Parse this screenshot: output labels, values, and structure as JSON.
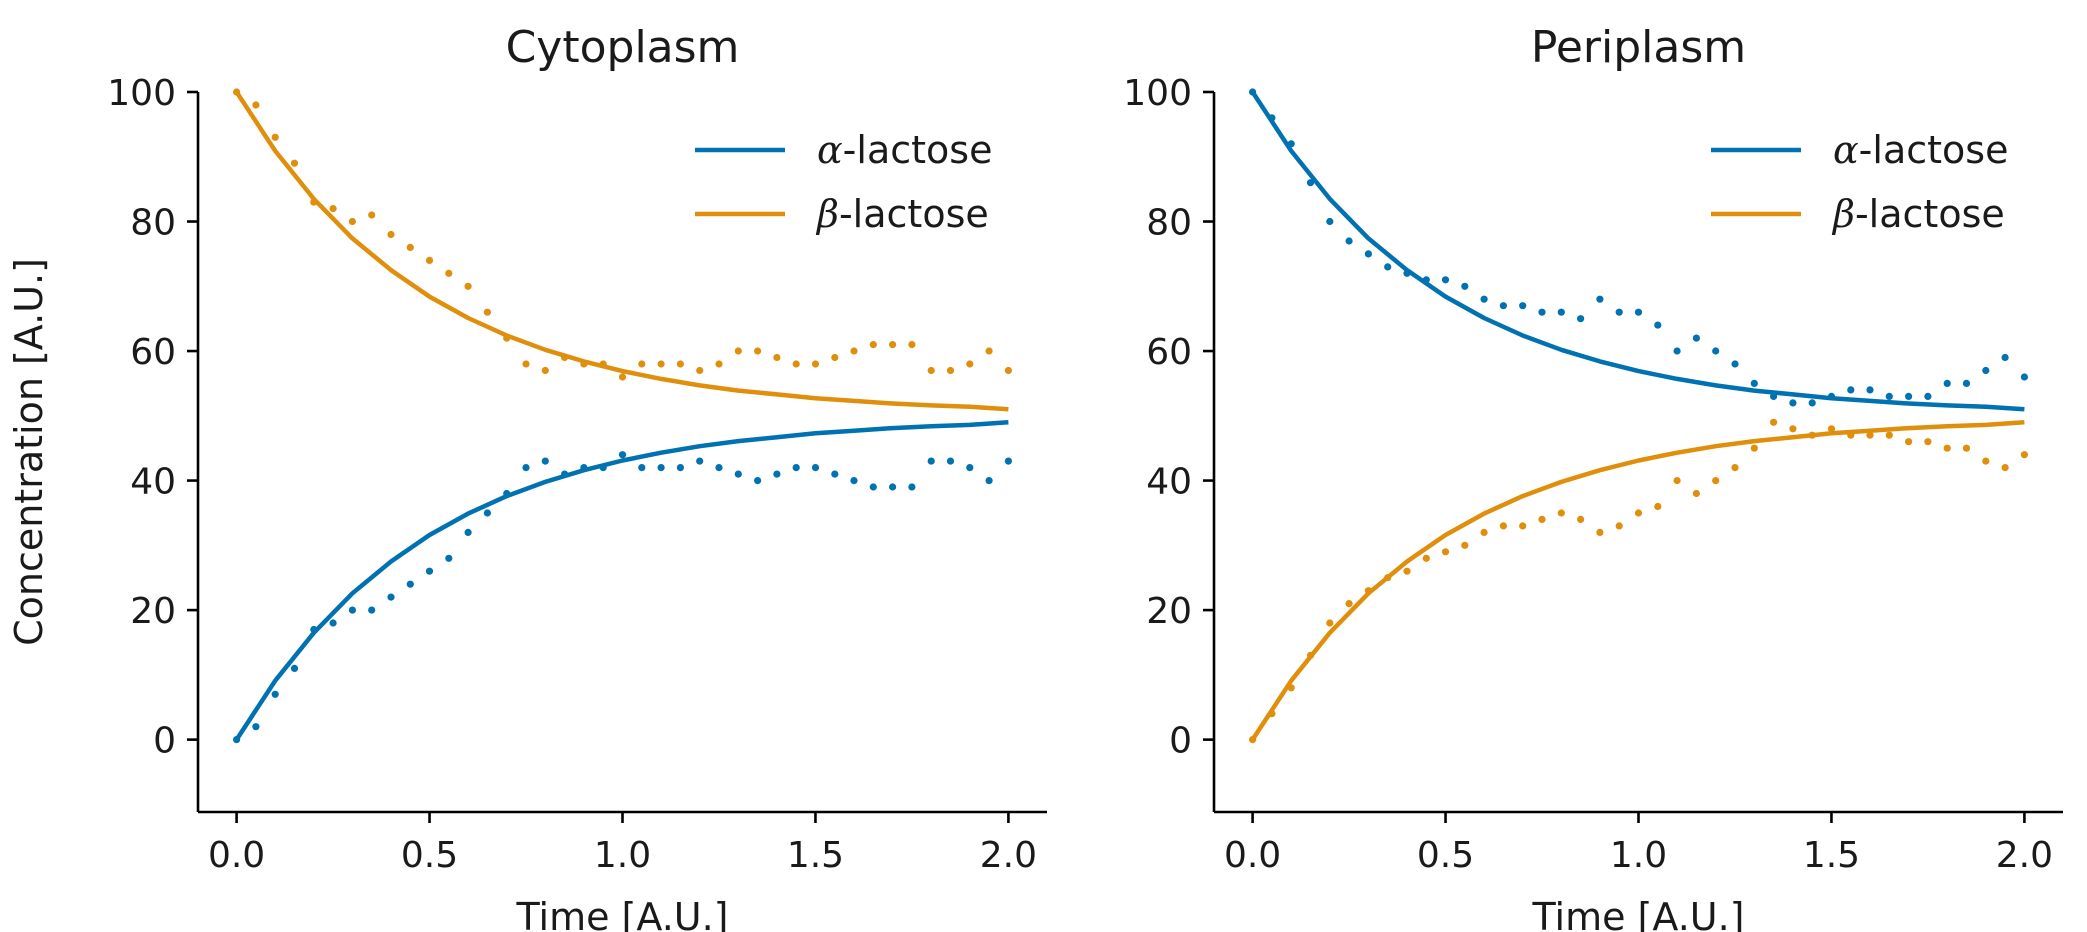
{
  "colors": {
    "alpha": "#0072b2",
    "beta": "#e08f0c"
  },
  "chart_data": [
    {
      "type": "line",
      "title": "Cytoplasm",
      "xlabel": "Time [A.U.]",
      "ylabel": "Concentration [A.U.]",
      "xlim": [
        -0.1,
        2.1
      ],
      "ylim": [
        -5,
        100
      ],
      "xticks": [
        0.0,
        0.5,
        1.0,
        1.5,
        2.0
      ],
      "xtick_labels": [
        "0.0",
        "0.5",
        "1.0",
        "1.5",
        "2.0"
      ],
      "yticks": [
        0,
        20,
        40,
        60,
        80,
        100
      ],
      "ytick_labels": [
        "0",
        "20",
        "40",
        "60",
        "80",
        "100"
      ],
      "grid": false,
      "legend_position": "top-right",
      "legend": [
        {
          "symbol": "α",
          "label": "-lactose",
          "series": "alpha"
        },
        {
          "symbol": "β",
          "label": "-lactose",
          "series": "beta"
        }
      ],
      "series": [
        {
          "name": "α-lactose",
          "color_key": "alpha",
          "fit": {
            "x": [
              0.0,
              0.1,
              0.2,
              0.3,
              0.4,
              0.5,
              0.6,
              0.7,
              0.8,
              0.9,
              1.0,
              1.1,
              1.2,
              1.3,
              1.4,
              1.5,
              1.6,
              1.7,
              1.8,
              1.9,
              2.0
            ],
            "y": [
              0,
              9.1,
              16.5,
              22.6,
              27.5,
              31.6,
              34.9,
              37.6,
              39.8,
              41.6,
              43.1,
              44.3,
              45.3,
              46.1,
              46.7,
              47.3,
              47.7,
              48.1,
              48.4,
              48.6,
              49.0
            ]
          },
          "points": {
            "x": [
              0.0,
              0.05,
              0.1,
              0.15,
              0.2,
              0.25,
              0.3,
              0.35,
              0.4,
              0.45,
              0.5,
              0.55,
              0.6,
              0.65,
              0.7,
              0.75,
              0.8,
              0.85,
              0.9,
              0.95,
              1.0,
              1.05,
              1.1,
              1.15,
              1.2,
              1.25,
              1.3,
              1.35,
              1.4,
              1.45,
              1.5,
              1.55,
              1.6,
              1.65,
              1.7,
              1.75,
              1.8,
              1.85,
              1.9,
              1.95,
              2.0
            ],
            "y": [
              0,
              2,
              7,
              11,
              17,
              18,
              20,
              20,
              22,
              24,
              26,
              28,
              32,
              35,
              38,
              42,
              43,
              41,
              42,
              42,
              44,
              42,
              42,
              42,
              43,
              42,
              41,
              40,
              41,
              42,
              42,
              41,
              40,
              39,
              39,
              39,
              43,
              43,
              42,
              40,
              43
            ]
          }
        },
        {
          "name": "β-lactose",
          "color_key": "beta",
          "fit": {
            "x": [
              0.0,
              0.1,
              0.2,
              0.3,
              0.4,
              0.5,
              0.6,
              0.7,
              0.8,
              0.9,
              1.0,
              1.1,
              1.2,
              1.3,
              1.4,
              1.5,
              1.6,
              1.7,
              1.8,
              1.9,
              2.0
            ],
            "y": [
              100,
              90.9,
              83.5,
              77.4,
              72.5,
              68.4,
              65.1,
              62.4,
              60.2,
              58.4,
              56.9,
              55.7,
              54.7,
              53.9,
              53.3,
              52.7,
              52.3,
              51.9,
              51.6,
              51.4,
              51.0
            ]
          },
          "points": {
            "x": [
              0.0,
              0.05,
              0.1,
              0.15,
              0.2,
              0.25,
              0.3,
              0.35,
              0.4,
              0.45,
              0.5,
              0.55,
              0.6,
              0.65,
              0.7,
              0.75,
              0.8,
              0.85,
              0.9,
              0.95,
              1.0,
              1.05,
              1.1,
              1.15,
              1.2,
              1.25,
              1.3,
              1.35,
              1.4,
              1.45,
              1.5,
              1.55,
              1.6,
              1.65,
              1.7,
              1.75,
              1.8,
              1.85,
              1.9,
              1.95,
              2.0
            ],
            "y": [
              100,
              98,
              93,
              89,
              83,
              82,
              80,
              81,
              78,
              76,
              74,
              72,
              70,
              66,
              62,
              58,
              57,
              59,
              58,
              58,
              56,
              58,
              58,
              58,
              57,
              58,
              60,
              60,
              59,
              58,
              58,
              59,
              60,
              61,
              61,
              61,
              57,
              57,
              58,
              60,
              57
            ]
          }
        }
      ]
    },
    {
      "type": "line",
      "title": "Periplasm",
      "xlabel": "Time [A.U.]",
      "ylabel": "",
      "xlim": [
        -0.1,
        2.1
      ],
      "ylim": [
        -5,
        100
      ],
      "xticks": [
        0.0,
        0.5,
        1.0,
        1.5,
        2.0
      ],
      "xtick_labels": [
        "0.0",
        "0.5",
        "1.0",
        "1.5",
        "2.0"
      ],
      "yticks": [
        0,
        20,
        40,
        60,
        80,
        100
      ],
      "ytick_labels": [
        "0",
        "20",
        "40",
        "60",
        "80",
        "100"
      ],
      "grid": false,
      "legend_position": "top-right",
      "legend": [
        {
          "symbol": "α",
          "label": "-lactose",
          "series": "alpha"
        },
        {
          "symbol": "β",
          "label": "-lactose",
          "series": "beta"
        }
      ],
      "series": [
        {
          "name": "α-lactose",
          "color_key": "alpha",
          "fit": {
            "x": [
              0.0,
              0.1,
              0.2,
              0.3,
              0.4,
              0.5,
              0.6,
              0.7,
              0.8,
              0.9,
              1.0,
              1.1,
              1.2,
              1.3,
              1.4,
              1.5,
              1.6,
              1.7,
              1.8,
              1.9,
              2.0
            ],
            "y": [
              100,
              90.9,
              83.5,
              77.4,
              72.5,
              68.4,
              65.1,
              62.4,
              60.2,
              58.4,
              56.9,
              55.7,
              54.7,
              53.9,
              53.3,
              52.7,
              52.3,
              51.9,
              51.6,
              51.4,
              51.0
            ]
          },
          "points": {
            "x": [
              0.0,
              0.05,
              0.1,
              0.15,
              0.2,
              0.25,
              0.3,
              0.35,
              0.4,
              0.45,
              0.5,
              0.55,
              0.6,
              0.65,
              0.7,
              0.75,
              0.8,
              0.85,
              0.9,
              0.95,
              1.0,
              1.05,
              1.1,
              1.15,
              1.2,
              1.25,
              1.3,
              1.35,
              1.4,
              1.45,
              1.5,
              1.55,
              1.6,
              1.65,
              1.7,
              1.75,
              1.8,
              1.85,
              1.9,
              1.95,
              2.0
            ],
            "y": [
              100,
              96,
              92,
              86,
              80,
              77,
              75,
              73,
              72,
              71,
              71,
              70,
              68,
              67,
              67,
              66,
              66,
              65,
              68,
              66,
              66,
              64,
              60,
              62,
              60,
              58,
              55,
              53,
              52,
              52,
              53,
              54,
              54,
              53,
              53,
              53,
              55,
              55,
              57,
              59,
              56
            ]
          }
        },
        {
          "name": "β-lactose",
          "color_key": "beta",
          "fit": {
            "x": [
              0.0,
              0.1,
              0.2,
              0.3,
              0.4,
              0.5,
              0.6,
              0.7,
              0.8,
              0.9,
              1.0,
              1.1,
              1.2,
              1.3,
              1.4,
              1.5,
              1.6,
              1.7,
              1.8,
              1.9,
              2.0
            ],
            "y": [
              0,
              9.1,
              16.5,
              22.6,
              27.5,
              31.6,
              34.9,
              37.6,
              39.8,
              41.6,
              43.1,
              44.3,
              45.3,
              46.1,
              46.7,
              47.3,
              47.7,
              48.1,
              48.4,
              48.6,
              49.0
            ]
          },
          "points": {
            "x": [
              0.0,
              0.05,
              0.1,
              0.15,
              0.2,
              0.25,
              0.3,
              0.35,
              0.4,
              0.45,
              0.5,
              0.55,
              0.6,
              0.65,
              0.7,
              0.75,
              0.8,
              0.85,
              0.9,
              0.95,
              1.0,
              1.05,
              1.1,
              1.15,
              1.2,
              1.25,
              1.3,
              1.35,
              1.4,
              1.45,
              1.5,
              1.55,
              1.6,
              1.65,
              1.7,
              1.75,
              1.8,
              1.85,
              1.9,
              1.95,
              2.0
            ],
            "y": [
              0,
              4,
              8,
              13,
              18,
              21,
              23,
              25,
              26,
              28,
              29,
              30,
              32,
              33,
              33,
              34,
              35,
              34,
              32,
              33,
              35,
              36,
              40,
              38,
              40,
              42,
              45,
              49,
              48,
              47,
              48,
              47,
              47,
              47,
              46,
              46,
              45,
              45,
              43,
              42,
              44
            ]
          }
        }
      ]
    }
  ]
}
